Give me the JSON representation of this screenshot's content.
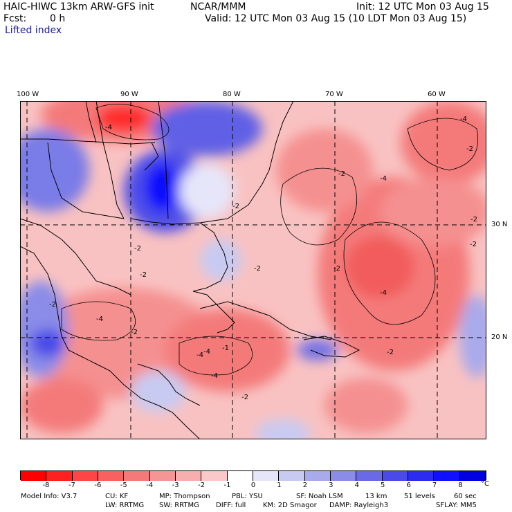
{
  "header": {
    "title": "HAIC-HIWC 13km ARW-GFS init",
    "org": "NCAR/MMM",
    "init": "Init: 12 UTC Mon 03 Aug 15",
    "fcst_label": "Fcst:",
    "fcst_value": "0 h",
    "valid": "Valid: 12 UTC Mon 03 Aug 15 (10 LDT Mon 03 Aug 15)",
    "field": "Lifted index"
  },
  "map": {
    "lon_labels": [
      "100 W",
      "90 W",
      "80 W",
      "70 W",
      "60 W"
    ],
    "lat_labels": [
      "30 N",
      "20 N"
    ],
    "contour_labels": [
      "-4",
      "-2",
      "-2",
      "-2",
      "-4",
      "-4",
      "-2",
      "-2",
      "-2",
      "-2",
      "-4",
      "-4",
      "-4",
      "-2",
      "-2",
      "-2",
      "-2",
      "-4",
      "-2",
      "-1",
      "-2",
      "-4"
    ],
    "colors": {
      "neg8": "#ff1a1a",
      "neg4": "#f47a7a",
      "neg2": "#f9b8b8",
      "zero": "#ffffff",
      "pos2": "#c4c8f2",
      "pos5": "#6a6ae6",
      "pos8": "#1010ff"
    }
  },
  "colorbar": {
    "ticks": [
      "-8",
      "-7",
      "-6",
      "-5",
      "-4",
      "-3",
      "-2",
      "-1",
      "0",
      "1",
      "2",
      "3",
      "4",
      "5",
      "6",
      "7",
      "8"
    ],
    "unit": "°C",
    "colors": [
      "#ff0000",
      "#ff2020",
      "#ff4545",
      "#f96060",
      "#f47a7a",
      "#f59595",
      "#f7aeae",
      "#fac8c8",
      "#ffffff",
      "#e6e6fa",
      "#c8caf2",
      "#a8aaec",
      "#8a8ce8",
      "#6a6ae6",
      "#4a4ae8",
      "#2c2cf0",
      "#1010ff",
      "#0000e0"
    ]
  },
  "footer": {
    "line1": [
      "Model Info: V3.7",
      "CU: KF",
      "MP: Thompson",
      "PBL: YSU",
      "SF: Noah LSM",
      "13 km",
      "51 levels",
      "60 sec"
    ],
    "line2": [
      "LW: RRTMG",
      "SW: RRTMG",
      "DIFF: full",
      "KM: 2D Smagor",
      "DAMP: Rayleigh3",
      "SFLAY: MM5"
    ]
  }
}
